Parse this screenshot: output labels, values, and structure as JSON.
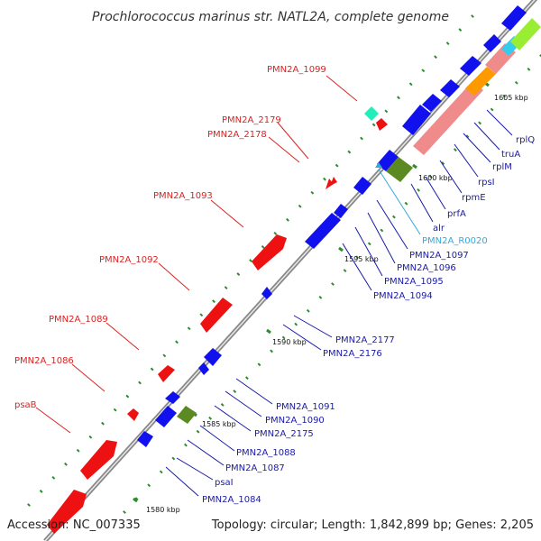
{
  "title": "Prochlorococcus marinus str. NATL2A, complete genome",
  "footer": {
    "accession": "Accession: NC_007335",
    "summary": "Topology: circular; Length: 1,842,899 bp; Genes: 2,205"
  },
  "colors": {
    "forward_cds": "#ee1111",
    "reverse_cds": "#1111ee",
    "rna": "#5b8a22",
    "backbone": "#999999",
    "ruler_dot": "#2d8c2d",
    "label_forward": "#dd2222",
    "label_reverse": "#1a1aaa",
    "label_rna": "#33aadd"
  },
  "ruler": [
    "1580 kbp",
    "1585 kbp",
    "1590 kbp",
    "1595 kbp",
    "1600 kbp",
    "1605 kbp"
  ],
  "forward_labels": [
    "PMN2A_1099",
    "PMN2A_2179",
    "PMN2A_2178",
    "PMN2A_1093",
    "PMN2A_1092",
    "PMN2A_1089",
    "PMN2A_1086",
    "psaB"
  ],
  "reverse_labels": [
    "rplQ",
    "truA",
    "rplM",
    "rpsI",
    "rpmE",
    "prfA",
    "alr",
    "PMN2A_R0020",
    "PMN2A_1097",
    "PMN2A_1096",
    "PMN2A_1095",
    "PMN2A_1094",
    "PMN2A_2177",
    "PMN2A_2176",
    "PMN2A_1091",
    "PMN2A_1090",
    "PMN2A_2175",
    "PMN2A_1088",
    "PMN2A_1087",
    "psaI",
    "PMN2A_1084"
  ]
}
